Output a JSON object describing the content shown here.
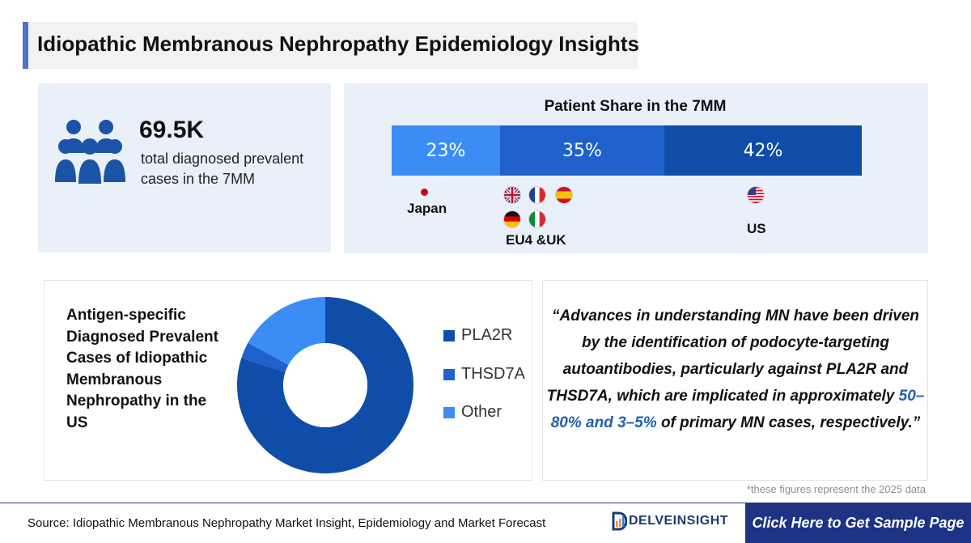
{
  "title": "Idiopathic Membranous Nephropathy Epidemiology Insights",
  "stat": {
    "value": "69.5K",
    "description": "total diagnosed prevalent cases in the 7MM",
    "icon": "people-group-icon"
  },
  "patient_share": {
    "title": "Patient Share in the 7MM",
    "segments": [
      {
        "label": "23%",
        "region": "Japan",
        "color": "#3b8cf5"
      },
      {
        "label": "35%",
        "region": "EU4 &UK",
        "color": "#1f60cd"
      },
      {
        "label": "42%",
        "region": "US",
        "color": "#0f4da8"
      }
    ]
  },
  "pie": {
    "title": "Antigen-specific Diagnosed Prevalent Cases of Idiopathic Membranous Nephropathy in the US"
  },
  "quote": {
    "part1": "“Advances in understanding MN have been driven by the identification of podocyte-targeting autoantibodies, particularly against PLA2R and THSD7A, which are implicated in approximately ",
    "highlight": "50–80% and 3–5%",
    "part2": " of primary MN cases, respectively.”"
  },
  "note": "*these figures represent the 2025 data",
  "footer": {
    "source": "Source: Idiopathic Membranous Nephropathy Market Insight, Epidemiology and Market Forecast",
    "logo_text": "DELVEINSIGHT",
    "cta": "Click Here to Get Sample Page"
  },
  "chart_data": [
    {
      "type": "bar",
      "title": "Patient Share in the 7MM",
      "categories": [
        "Japan",
        "EU4 &UK",
        "US"
      ],
      "values": [
        23,
        35,
        42
      ],
      "stacked_horizontal": true,
      "unit": "%"
    },
    {
      "type": "pie",
      "donut": true,
      "title": "Antigen-specific Diagnosed Prevalent Cases of Idiopathic Membranous Nephropathy in the US",
      "categories": [
        "PLA2R",
        "THSD7A",
        "Other"
      ],
      "values": [
        80,
        3,
        17
      ],
      "colors": [
        "#0f4da8",
        "#1f60cd",
        "#3b8cf5"
      ],
      "legend": "right"
    }
  ]
}
